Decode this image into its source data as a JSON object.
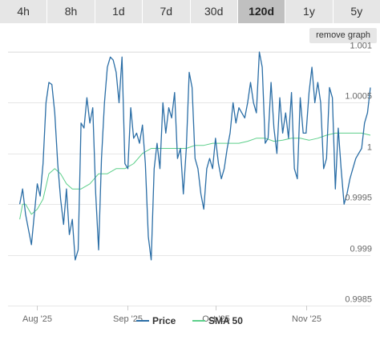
{
  "range_buttons": [
    "4h",
    "8h",
    "1d",
    "7d",
    "30d",
    "120d",
    "1y",
    "5y"
  ],
  "active_range": "120d",
  "remove_graph_label": "remove graph",
  "colors": {
    "price": "#2b6ea6",
    "sma": "#5ccf8a",
    "grid": "#e6e6e6"
  },
  "chart_data": {
    "type": "line",
    "ylim": [
      0.9985,
      1.001
    ],
    "y_ticks": [
      0.9985,
      0.999,
      0.9995,
      1,
      1.0005,
      1.001
    ],
    "y_tick_labels": [
      "0.9985",
      "0.999",
      "0.9995",
      "1",
      "1.0005",
      "1.001"
    ],
    "x_range": [
      "2025-07-22",
      "2025-11-23"
    ],
    "x_ticks": [
      "2025-08-01",
      "2025-09-01",
      "2025-10-01",
      "2025-11-01"
    ],
    "x_tick_labels": [
      "Aug '25",
      "Sep '25",
      "Oct '25",
      "Nov '25"
    ],
    "legend": [
      "Price",
      "SMA 50"
    ],
    "legend_position": "bottom",
    "series": [
      {
        "name": "Price",
        "x": [
          "2025-07-26",
          "2025-07-27",
          "2025-07-28",
          "2025-07-29",
          "2025-07-30",
          "2025-07-31",
          "2025-08-01",
          "2025-08-02",
          "2025-08-03",
          "2025-08-04",
          "2025-08-05",
          "2025-08-06",
          "2025-08-07",
          "2025-08-08",
          "2025-08-09",
          "2025-08-10",
          "2025-08-11",
          "2025-08-12",
          "2025-08-13",
          "2025-08-14",
          "2025-08-15",
          "2025-08-16",
          "2025-08-17",
          "2025-08-18",
          "2025-08-19",
          "2025-08-20",
          "2025-08-21",
          "2025-08-22",
          "2025-08-23",
          "2025-08-24",
          "2025-08-25",
          "2025-08-26",
          "2025-08-27",
          "2025-08-28",
          "2025-08-29",
          "2025-08-30",
          "2025-08-31",
          "2025-09-01",
          "2025-09-02",
          "2025-09-03",
          "2025-09-04",
          "2025-09-05",
          "2025-09-06",
          "2025-09-07",
          "2025-09-08",
          "2025-09-09",
          "2025-09-10",
          "2025-09-11",
          "2025-09-12",
          "2025-09-13",
          "2025-09-14",
          "2025-09-15",
          "2025-09-16",
          "2025-09-17",
          "2025-09-18",
          "2025-09-19",
          "2025-09-20",
          "2025-09-21",
          "2025-09-22",
          "2025-09-23",
          "2025-09-24",
          "2025-09-25",
          "2025-09-26",
          "2025-09-27",
          "2025-09-28",
          "2025-09-29",
          "2025-09-30",
          "2025-10-01",
          "2025-10-02",
          "2025-10-03",
          "2025-10-04",
          "2025-10-05",
          "2025-10-06",
          "2025-10-07",
          "2025-10-08",
          "2025-10-09",
          "2025-10-10",
          "2025-10-11",
          "2025-10-12",
          "2025-10-13",
          "2025-10-14",
          "2025-10-15",
          "2025-10-16",
          "2025-10-17",
          "2025-10-18",
          "2025-10-19",
          "2025-10-20",
          "2025-10-21",
          "2025-10-22",
          "2025-10-23",
          "2025-10-24",
          "2025-10-25",
          "2025-10-26",
          "2025-10-27",
          "2025-10-28",
          "2025-10-29",
          "2025-10-30",
          "2025-10-31",
          "2025-11-01",
          "2025-11-02",
          "2025-11-03",
          "2025-11-04",
          "2025-11-05",
          "2025-11-06",
          "2025-11-07",
          "2025-11-08",
          "2025-11-09",
          "2025-11-10",
          "2025-11-11",
          "2025-11-12",
          "2025-11-13",
          "2025-11-14",
          "2025-11-15",
          "2025-11-16",
          "2025-11-17",
          "2025-11-18",
          "2025-11-19",
          "2025-11-20",
          "2025-11-21",
          "2025-11-22",
          "2025-11-23"
        ],
        "values": [
          0.9995,
          0.99965,
          0.9994,
          0.99925,
          0.9991,
          0.9994,
          0.9997,
          0.99958,
          0.9999,
          1.0005,
          1.0007,
          1.00068,
          1.0004,
          0.9999,
          0.99955,
          0.9993,
          0.99965,
          0.9992,
          0.99935,
          0.99895,
          0.99905,
          1.0003,
          1.00025,
          1.00055,
          1.0003,
          1.00045,
          0.9996,
          0.99905,
          0.99995,
          1.0005,
          1.00085,
          1.00095,
          1.00092,
          1.0008,
          1.0005,
          1.00095,
          0.9999,
          0.99985,
          1.00045,
          1.00015,
          1.0002,
          1.0001,
          1.00028,
          0.9999,
          0.99918,
          0.99895,
          0.99985,
          1.0001,
          0.99985,
          1.0005,
          1.0002,
          1.00045,
          1.00035,
          1.0006,
          0.99995,
          1.00005,
          0.9996,
          1.00005,
          1.0008,
          1.00065,
          0.99995,
          0.99985,
          0.9996,
          0.99945,
          0.99985,
          0.99995,
          0.99985,
          1.00015,
          0.9999,
          0.99975,
          0.99985,
          1.00005,
          1.0002,
          1.0005,
          1.0003,
          1.00045,
          1.0004,
          1.00035,
          1.0005,
          1.0007,
          1.0005,
          1.0004,
          1.001,
          1.00085,
          1.0001,
          1.00015,
          1.0007,
          1.00025,
          1.0,
          1.00055,
          1.0002,
          1.0004,
          1.00015,
          1.0006,
          0.99985,
          0.99975,
          1.00055,
          1.0002,
          1.0002,
          1.0006,
          1.00085,
          1.0005,
          1.0007,
          1.0005,
          0.99985,
          0.99995,
          1.00065,
          1.00055,
          0.99965,
          1.00025,
          0.99985,
          0.9995,
          0.9996,
          0.99975,
          0.99985,
          0.99995,
          1.0,
          1.00005,
          1.0003,
          1.0004,
          1.00065
        ]
      },
      {
        "name": "SMA 50",
        "x": [
          "2025-07-26",
          "2025-07-27",
          "2025-07-28",
          "2025-07-29",
          "2025-07-30",
          "2025-08-01",
          "2025-08-03",
          "2025-08-05",
          "2025-08-07",
          "2025-08-09",
          "2025-08-11",
          "2025-08-13",
          "2025-08-16",
          "2025-08-19",
          "2025-08-22",
          "2025-08-25",
          "2025-08-28",
          "2025-08-31",
          "2025-09-03",
          "2025-09-06",
          "2025-09-09",
          "2025-09-12",
          "2025-09-15",
          "2025-09-18",
          "2025-09-21",
          "2025-09-24",
          "2025-09-27",
          "2025-09-30",
          "2025-10-03",
          "2025-10-06",
          "2025-10-09",
          "2025-10-12",
          "2025-10-15",
          "2025-10-18",
          "2025-10-21",
          "2025-10-24",
          "2025-10-27",
          "2025-10-30",
          "2025-11-02",
          "2025-11-05",
          "2025-11-08",
          "2025-11-11",
          "2025-11-14",
          "2025-11-17",
          "2025-11-20",
          "2025-11-23"
        ],
        "values": [
          0.99935,
          0.9995,
          0.9995,
          0.99945,
          0.9994,
          0.99945,
          0.99955,
          0.9998,
          0.99985,
          0.9998,
          0.9997,
          0.99965,
          0.99965,
          0.9997,
          0.9998,
          0.9998,
          0.99985,
          0.99985,
          0.9999,
          1.0,
          1.00005,
          1.00005,
          1.00005,
          1.00005,
          1.00005,
          1.00008,
          1.00008,
          1.0001,
          1.0001,
          1.0001,
          1.0001,
          1.00012,
          1.00015,
          1.00015,
          1.00012,
          1.00013,
          1.00015,
          1.00015,
          1.00013,
          1.00015,
          1.00018,
          1.0002,
          1.0002,
          1.0002,
          1.0002,
          1.00018
        ]
      }
    ]
  }
}
